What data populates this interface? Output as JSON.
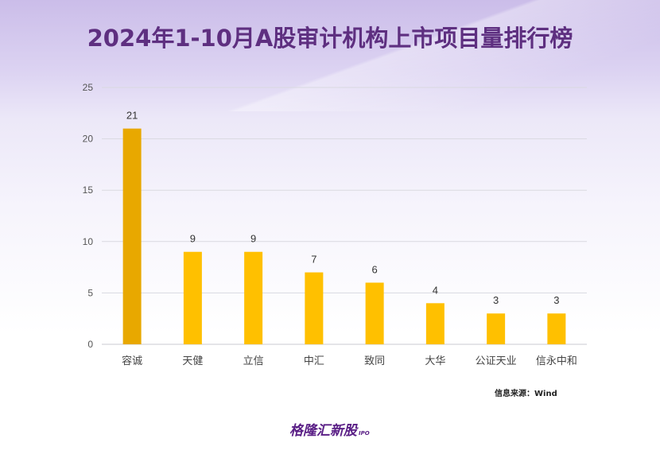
{
  "chart_data": {
    "type": "bar",
    "title": "2024年1-10月A股审计机构上市项目量排行榜",
    "categories": [
      "容诚",
      "天健",
      "立信",
      "中汇",
      "致同",
      "大华",
      "公证天业",
      "信永中和"
    ],
    "values": [
      21,
      9,
      9,
      7,
      6,
      4,
      3,
      3
    ],
    "xlabel": "",
    "ylabel": "",
    "ylim": [
      0,
      25
    ],
    "yticks": [
      0,
      5,
      10,
      15,
      20,
      25
    ],
    "grid": true,
    "bar_color": "#ffc000",
    "highlight_color": "#e8a800"
  },
  "source": "信息来源：Wind",
  "logo": {
    "name": "格隆汇新股",
    "sub": "IPO"
  }
}
